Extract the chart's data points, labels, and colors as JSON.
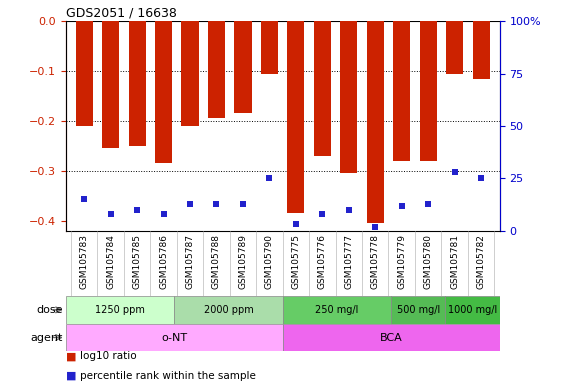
{
  "title": "GDS2051 / 16638",
  "samples": [
    "GSM105783",
    "GSM105784",
    "GSM105785",
    "GSM105786",
    "GSM105787",
    "GSM105788",
    "GSM105789",
    "GSM105790",
    "GSM105775",
    "GSM105776",
    "GSM105777",
    "GSM105778",
    "GSM105779",
    "GSM105780",
    "GSM105781",
    "GSM105782"
  ],
  "log10_ratio": [
    -0.21,
    -0.255,
    -0.25,
    -0.285,
    -0.21,
    -0.195,
    -0.185,
    -0.105,
    -0.385,
    -0.27,
    -0.305,
    -0.405,
    -0.28,
    -0.28,
    -0.105,
    -0.115
  ],
  "percentile_rank": [
    15,
    8,
    10,
    8,
    13,
    13,
    13,
    25,
    3,
    8,
    10,
    2,
    12,
    13,
    28,
    25
  ],
  "ylim_left": [
    -0.42,
    0.0
  ],
  "ylim_right": [
    0,
    100
  ],
  "yticks_left": [
    0.0,
    -0.1,
    -0.2,
    -0.3,
    -0.4
  ],
  "yticks_right": [
    0,
    25,
    50,
    75,
    100
  ],
  "bar_color": "#cc2200",
  "marker_color": "#2222cc",
  "dose_groups": [
    {
      "label": "1250 ppm",
      "start": 0,
      "end": 4,
      "color": "#ccffcc"
    },
    {
      "label": "2000 ppm",
      "start": 4,
      "end": 8,
      "color": "#aaddaa"
    },
    {
      "label": "250 mg/l",
      "start": 8,
      "end": 12,
      "color": "#66cc66"
    },
    {
      "label": "500 mg/l",
      "start": 12,
      "end": 14,
      "color": "#55bb55"
    },
    {
      "label": "1000 mg/l",
      "start": 14,
      "end": 16,
      "color": "#44bb44"
    }
  ],
  "agent_groups": [
    {
      "label": "o-NT",
      "start": 0,
      "end": 8,
      "color": "#ffaaff"
    },
    {
      "label": "BCA",
      "start": 8,
      "end": 16,
      "color": "#ee66ee"
    }
  ],
  "legend_red": "log10 ratio",
  "legend_blue": "percentile rank within the sample",
  "dose_label": "dose",
  "agent_label": "agent",
  "left_axis_color": "#cc2200",
  "right_axis_color": "#0000cc",
  "grid_color": "#000000",
  "bg_color": "#ffffff",
  "label_row_color": "#dddddd"
}
